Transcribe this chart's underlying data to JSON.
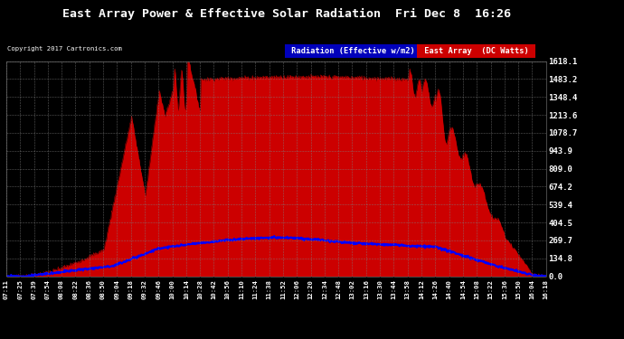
{
  "title": "East Array Power & Effective Solar Radiation  Fri Dec 8  16:26",
  "copyright": "Copyright 2017 Cartronics.com",
  "legend_radiation": "Radiation (Effective w/m2)",
  "legend_east": "East Array  (DC Watts)",
  "background_color": "#000000",
  "plot_bg_color": "#000000",
  "grid_color": "#808080",
  "radiation_line_color": "#0000ff",
  "east_fill_color": "#cc0000",
  "y_max": 1618.1,
  "y_min": 0.0,
  "y_ticks": [
    0.0,
    134.8,
    269.7,
    404.5,
    539.4,
    674.2,
    809.0,
    943.9,
    1078.7,
    1213.6,
    1348.4,
    1483.2,
    1618.1
  ],
  "time_labels": [
    "07:11",
    "07:25",
    "07:39",
    "07:54",
    "08:08",
    "08:22",
    "08:36",
    "08:50",
    "09:04",
    "09:18",
    "09:32",
    "09:46",
    "10:00",
    "10:14",
    "10:28",
    "10:42",
    "10:56",
    "11:10",
    "11:24",
    "11:38",
    "11:52",
    "12:06",
    "12:20",
    "12:34",
    "12:48",
    "13:02",
    "13:16",
    "13:30",
    "13:44",
    "13:58",
    "14:12",
    "14:26",
    "14:40",
    "14:54",
    "15:08",
    "15:22",
    "15:36",
    "15:50",
    "16:04",
    "16:18"
  ]
}
